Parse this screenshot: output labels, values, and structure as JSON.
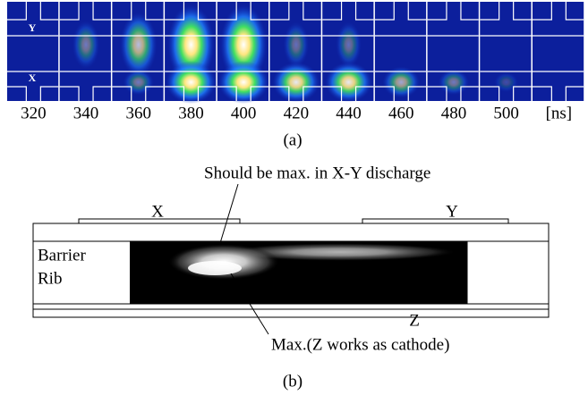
{
  "panel_a": {
    "electrode_top": "Y",
    "electrode_bottom": "X",
    "times": [
      320,
      340,
      360,
      380,
      400,
      420,
      440,
      460,
      480,
      500
    ],
    "unit": "[ns]",
    "caption": "(a)"
  },
  "panel_b": {
    "electrode_x": "X",
    "electrode_y": "Y",
    "electrode_z": "Z",
    "rib_lines": [
      "Barrier",
      "Rib"
    ],
    "note_top": "Should be max. in X-Y discharge",
    "note_bottom": "Max.(Z works as cathode)",
    "caption": "(b)"
  }
}
